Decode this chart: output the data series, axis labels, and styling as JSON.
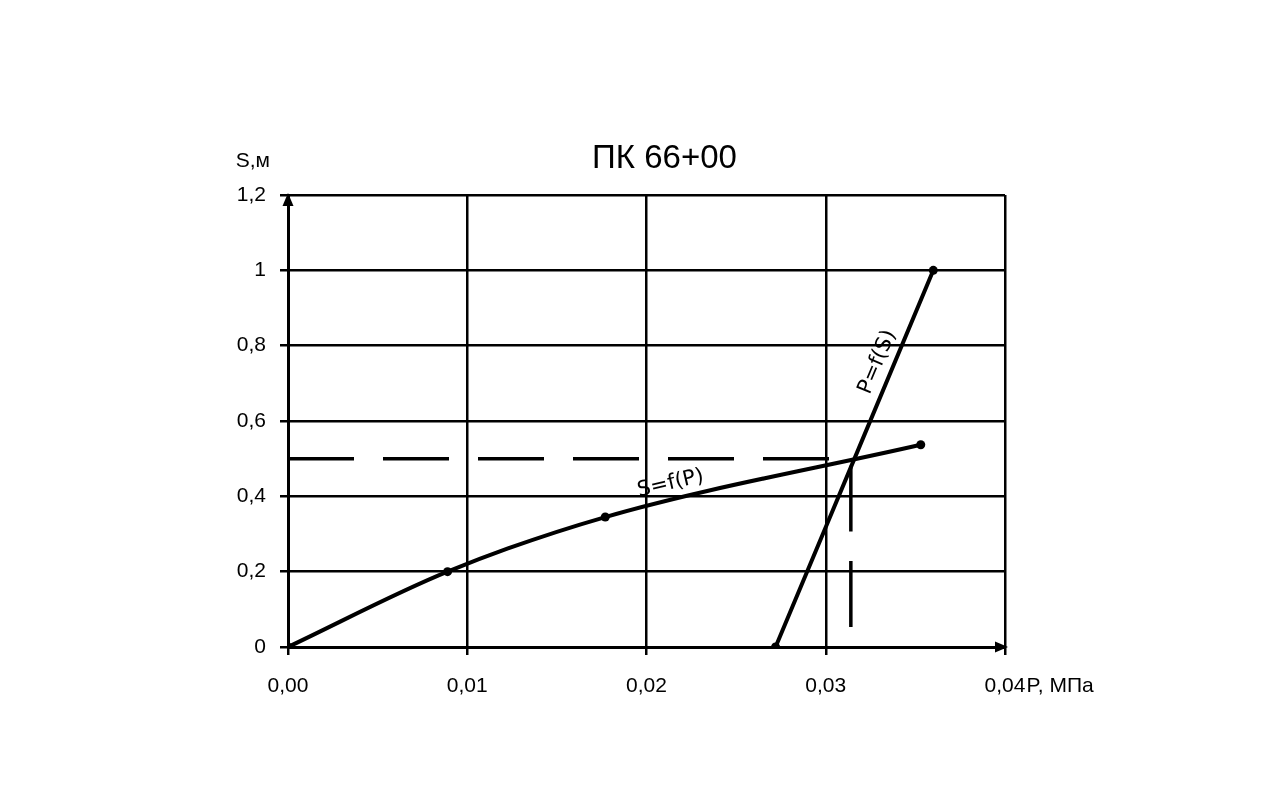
{
  "chart_data": {
    "type": "line",
    "title": "ПК 66+00",
    "xlabel": "P, МПа",
    "ylabel": "S,м",
    "series": [
      {
        "name": "S=f(P)",
        "color": "#000000",
        "x": [
          0,
          0.0089,
          0.0177,
          0.0353
        ],
        "values": [
          0,
          0.2,
          0.345,
          0.537
        ]
      },
      {
        "name": "P=f(S)",
        "color": "#000000",
        "x": [
          0.0272,
          0.036
        ],
        "values": [
          0,
          1
        ]
      },
      {
        "color": "#000000",
        "x": [
          0,
          0.0314,
          0.0314
        ],
        "values": [
          0.5,
          0.5,
          0
        ],
        "line_style": "dashed",
        "marker": "none"
      }
    ],
    "xlim": [
      0,
      0.04
    ],
    "xticks": [
      {
        "value": 0,
        "label": "0,00"
      },
      {
        "value": 0.01,
        "label": "0,01"
      },
      {
        "value": 0.02,
        "label": "0,02"
      },
      {
        "value": 0.03,
        "label": "0,03"
      },
      {
        "value": 0.04,
        "label": "0,04"
      }
    ],
    "ylim": [
      0,
      1.2
    ],
    "yticks": [
      0,
      {
        "value": 0.2,
        "label": "0,2"
      },
      {
        "value": 0.4,
        "label": "0,4"
      },
      {
        "value": 0.6,
        "label": "0,6"
      },
      {
        "value": 0.8,
        "label": "0,8"
      },
      1,
      {
        "value": 1.2,
        "label": "1,2"
      }
    ],
    "grid": true,
    "legend": false,
    "marker": "circle",
    "line_style": "solid"
  }
}
